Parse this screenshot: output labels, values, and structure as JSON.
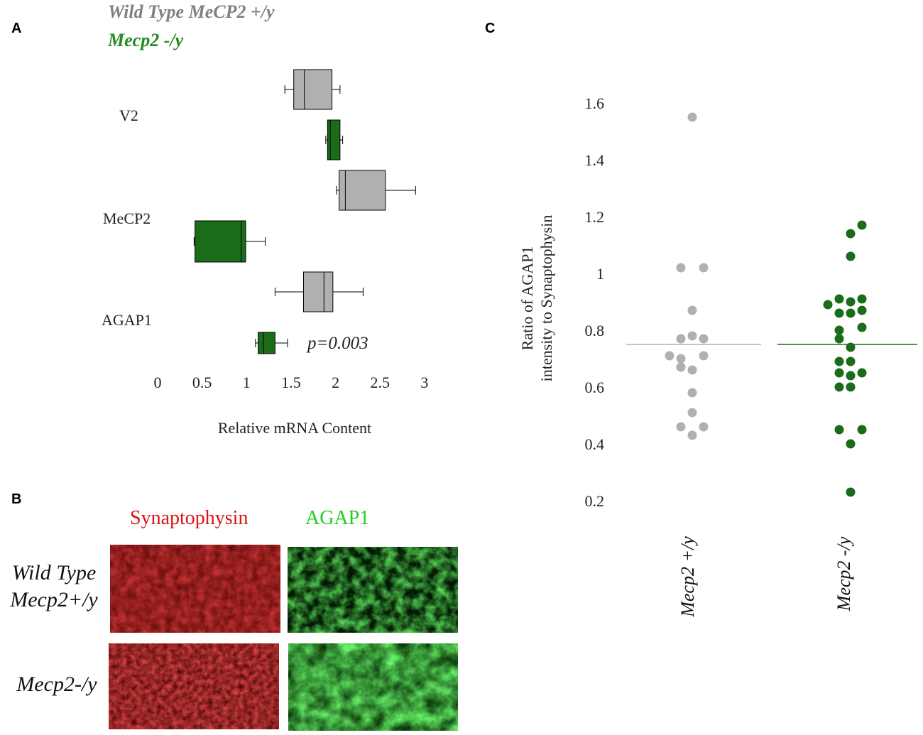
{
  "panels": {
    "a": "A",
    "b": "B",
    "c": "C"
  },
  "colors": {
    "wild_type": "#b0b0b0",
    "knockout": "#1a6b1a",
    "legend_wt": "#808080",
    "legend_ko": "#228b22",
    "synaptophysin": "#dd1111",
    "agap1": "#22cc22"
  },
  "chart_data": [
    {
      "type": "box",
      "panel": "A",
      "orientation": "horizontal",
      "legend": [
        "Wild Type MeCP2 +/y",
        "Mecp2 -/y"
      ],
      "legend_placement": "top-left",
      "xlabel": "Relative mRNA Content",
      "xlim": [
        0,
        3
      ],
      "xticks": [
        "0",
        "0.5",
        "1",
        "1.5",
        "2",
        "2.5",
        "3"
      ],
      "grid": false,
      "categories": [
        "V2",
        "MeCP2",
        "AGAP1"
      ],
      "annotation": "p=0.003",
      "series": [
        {
          "name": "Wild Type MeCP2 +/y",
          "boxes": [
            {
              "category": "V2",
              "min": 1.43,
              "q1": 1.53,
              "median": 1.65,
              "q3": 1.96,
              "max": 2.05
            },
            {
              "category": "MeCP2",
              "min": 2.01,
              "q1": 2.04,
              "median": 2.11,
              "q3": 2.56,
              "max": 2.9
            },
            {
              "category": "AGAP1",
              "min": 1.32,
              "q1": 1.64,
              "median": 1.87,
              "q3": 1.97,
              "max": 2.31
            }
          ]
        },
        {
          "name": "Mecp2 -/y",
          "boxes": [
            {
              "category": "V2",
              "min": 1.89,
              "q1": 1.91,
              "median": 1.94,
              "q3": 2.05,
              "max": 2.08
            },
            {
              "category": "MeCP2",
              "min": 0.41,
              "q1": 0.42,
              "median": 0.94,
              "q3": 0.99,
              "max": 1.21
            },
            {
              "category": "AGAP1",
              "min": 1.1,
              "q1": 1.13,
              "median": 1.19,
              "q3": 1.32,
              "max": 1.46
            }
          ]
        }
      ]
    },
    {
      "type": "scatter",
      "panel": "C",
      "ylabel": [
        "Ratio of AGAP1",
        "intensity to Synaptophysin"
      ],
      "ylim": [
        0.2,
        1.6
      ],
      "yticks": [
        "0.2",
        "0.4",
        "0.6",
        "0.8",
        "1",
        "1.2",
        "1.4",
        "1.6"
      ],
      "grid": false,
      "categories": [
        "Mecp2 +/y",
        "Mecp2 -/y"
      ],
      "series": [
        {
          "name": "Mecp2 +/y",
          "mean": 0.75,
          "points": [
            {
              "offset": 0,
              "y": 1.55
            },
            {
              "offset": -1,
              "y": 1.02
            },
            {
              "offset": 1,
              "y": 1.02
            },
            {
              "offset": 0,
              "y": 0.87
            },
            {
              "offset": -1,
              "y": 0.77
            },
            {
              "offset": 0,
              "y": 0.78
            },
            {
              "offset": 1,
              "y": 0.77
            },
            {
              "offset": -2,
              "y": 0.71
            },
            {
              "offset": -1,
              "y": 0.7
            },
            {
              "offset": 1,
              "y": 0.71
            },
            {
              "offset": -1,
              "y": 0.67
            },
            {
              "offset": 0,
              "y": 0.66
            },
            {
              "offset": 0,
              "y": 0.58
            },
            {
              "offset": 0,
              "y": 0.51
            },
            {
              "offset": -1,
              "y": 0.46
            },
            {
              "offset": 1,
              "y": 0.46
            },
            {
              "offset": 0,
              "y": 0.43
            }
          ]
        },
        {
          "name": "Mecp2 -/y",
          "mean": 0.75,
          "points": [
            {
              "offset": 0,
              "y": 1.14
            },
            {
              "offset": 1,
              "y": 1.17
            },
            {
              "offset": 0,
              "y": 1.06
            },
            {
              "offset": -2,
              "y": 0.89
            },
            {
              "offset": -1,
              "y": 0.91
            },
            {
              "offset": 0,
              "y": 0.9
            },
            {
              "offset": 1,
              "y": 0.91
            },
            {
              "offset": -1,
              "y": 0.86
            },
            {
              "offset": 0,
              "y": 0.86
            },
            {
              "offset": 1,
              "y": 0.87
            },
            {
              "offset": -1,
              "y": 0.8
            },
            {
              "offset": 1,
              "y": 0.81
            },
            {
              "offset": -1,
              "y": 0.77
            },
            {
              "offset": 0,
              "y": 0.74
            },
            {
              "offset": -1,
              "y": 0.69
            },
            {
              "offset": 0,
              "y": 0.69
            },
            {
              "offset": -1,
              "y": 0.65
            },
            {
              "offset": 0,
              "y": 0.64
            },
            {
              "offset": 1,
              "y": 0.65
            },
            {
              "offset": -1,
              "y": 0.6
            },
            {
              "offset": 0,
              "y": 0.6
            },
            {
              "offset": -1,
              "y": 0.45
            },
            {
              "offset": 1,
              "y": 0.45
            },
            {
              "offset": 0,
              "y": 0.4
            },
            {
              "offset": 0,
              "y": 0.23
            }
          ]
        }
      ]
    }
  ],
  "panel_b": {
    "column_labels": [
      "Synaptophysin",
      "AGAP1"
    ],
    "row_labels": {
      "wild_type_line1": "Wild Type",
      "wild_type_line2": "Mecp2+/y",
      "knockout": "Mecp2-/y"
    }
  }
}
